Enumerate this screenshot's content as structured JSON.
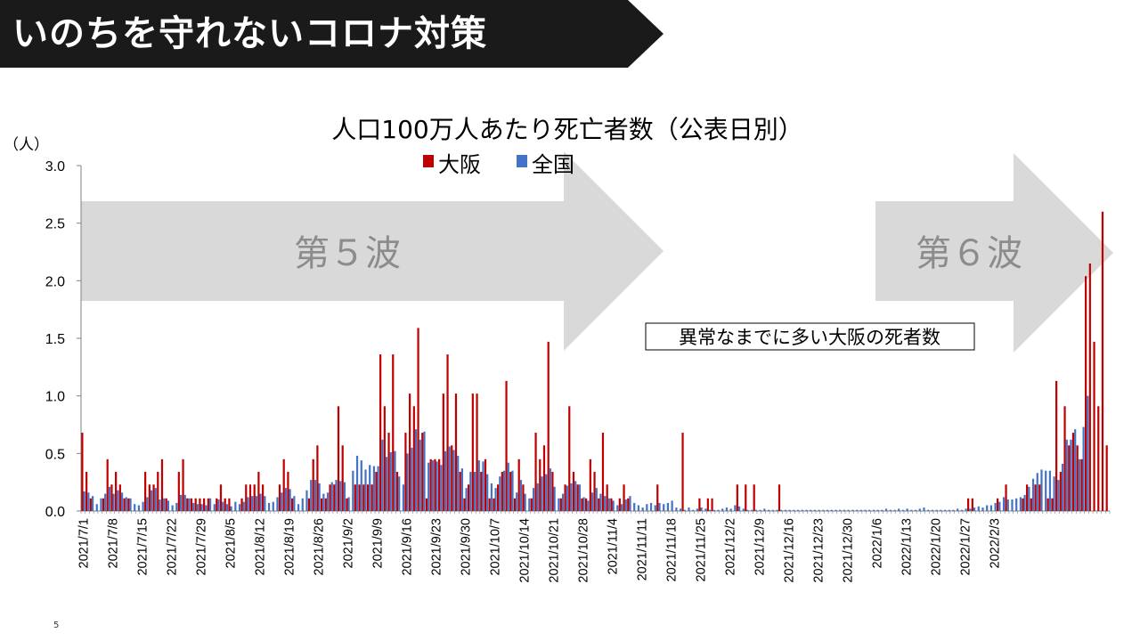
{
  "slide": {
    "title": "いのちを守れないコロナ対策",
    "page_number": "5"
  },
  "annotations": {
    "wave5_label": "第５波",
    "wave6_label": "第６波",
    "note": "異常なまでに多い大阪の死者数"
  },
  "colors": {
    "osaka": "#c00000",
    "national": "#4472c4",
    "arrow": "#d9d9d9",
    "title_bar": "#1a1a1a"
  },
  "chart_data": {
    "type": "bar",
    "title": "人口100万人あたり死亡者数（公表日別）",
    "ylabel": "（人）",
    "ylim": [
      0,
      3.0
    ],
    "yticks": [
      "0.0",
      "0.5",
      "1.0",
      "1.5",
      "2.0",
      "2.5",
      "3.0"
    ],
    "legend_position": "top-center",
    "start_date": "2021/7/1",
    "x_tick_labels": [
      "2021/7/1",
      "2021/7/8",
      "2021/7/15",
      "2021/7/22",
      "2021/7/29",
      "2021/8/5",
      "2021/8/12",
      "2021/8/19",
      "2021/8/26",
      "2021/9/2",
      "2021/9/9",
      "2021/9/16",
      "2021/9/23",
      "2021/9/30",
      "2021/10/7",
      "2021/10/14",
      "2021/10/21",
      "2021/10/28",
      "2021/11/4",
      "2021/11/11",
      "2021/11/18",
      "2021/11/25",
      "2021/12/2",
      "2021/12/9",
      "2021/12/16",
      "2021/12/23",
      "2021/12/30",
      "2022/1/6",
      "2022/1/13",
      "2022/1/20",
      "2022/1/27",
      "2022/2/3"
    ],
    "series": [
      {
        "name": "大阪",
        "values": [
          0.68,
          0.34,
          0.11,
          0,
          0,
          0.11,
          0.45,
          0.23,
          0.34,
          0.23,
          0.11,
          0.11,
          0,
          0,
          0,
          0.34,
          0.23,
          0.23,
          0.34,
          0.45,
          0.11,
          0,
          0,
          0.34,
          0.45,
          0.11,
          0.11,
          0.11,
          0.11,
          0.11,
          0.11,
          0,
          0.11,
          0.23,
          0.11,
          0.11,
          0,
          0,
          0.11,
          0.23,
          0.23,
          0.23,
          0.34,
          0.23,
          0,
          0,
          0,
          0.23,
          0.45,
          0.34,
          0.11,
          0,
          0,
          0,
          0.11,
          0.45,
          0.57,
          0.11,
          0.11,
          0.23,
          0.23,
          0.91,
          0.57,
          0.11,
          0,
          0.23,
          0.23,
          0.23,
          0.23,
          0.23,
          0.34,
          1.36,
          0.91,
          0.68,
          1.36,
          0.34,
          0,
          0.68,
          1.02,
          0.91,
          1.59,
          0.68,
          0.11,
          0.45,
          0.45,
          0.45,
          1.02,
          1.36,
          0.57,
          1.02,
          0.34,
          0.11,
          0.23,
          1.02,
          1.02,
          0.34,
          0.45,
          0.11,
          0.11,
          0.23,
          0.34,
          1.13,
          0.34,
          0.11,
          0.45,
          0.23,
          0,
          0.11,
          0.68,
          0.45,
          0.57,
          1.47,
          0.34,
          0,
          0.11,
          0.23,
          0.91,
          0.34,
          0.23,
          0.11,
          0.11,
          0.45,
          0.34,
          0.11,
          0.68,
          0.23,
          0.11,
          0,
          0.11,
          0.23,
          0.11,
          0,
          0,
          0,
          0,
          0,
          0,
          0.23,
          0,
          0,
          0,
          0,
          0,
          0.68,
          0,
          0,
          0,
          0.11,
          0,
          0.11,
          0.11,
          0,
          0,
          0,
          0,
          0,
          0.23,
          0,
          0.23,
          0,
          0.23,
          0,
          0,
          0,
          0,
          0,
          0.23,
          0,
          0,
          0,
          0,
          0,
          0,
          0,
          0,
          0,
          0,
          0,
          0,
          0,
          0,
          0,
          0,
          0,
          0,
          0,
          0,
          0,
          0,
          0,
          0,
          0,
          0,
          0,
          0,
          0,
          0,
          0,
          0,
          0,
          0,
          0,
          0,
          0,
          0,
          0,
          0,
          0,
          0,
          0,
          0,
          0.11,
          0.11,
          0,
          0,
          0,
          0,
          0,
          0.11,
          0,
          0.23,
          0,
          0,
          0,
          0.11,
          0.23,
          0.11,
          0.23,
          0.23,
          0,
          0.11,
          0.11,
          1.13,
          0.34,
          0.91,
          0.57,
          0.68,
          0.57,
          0.45,
          2.04,
          2.15,
          1.47,
          0.91,
          2.6,
          0.57
        ],
        "color": "#c00000"
      },
      {
        "name": "全国",
        "values": [
          0.17,
          0.16,
          0.13,
          0.06,
          0.11,
          0.15,
          0.21,
          0.15,
          0.18,
          0.16,
          0.12,
          0.11,
          0.06,
          0.05,
          0.08,
          0.12,
          0.18,
          0.2,
          0.1,
          0.11,
          0.09,
          0.05,
          0.07,
          0.14,
          0.14,
          0.11,
          0.07,
          0.06,
          0.06,
          0.05,
          0.11,
          0.06,
          0.1,
          0.08,
          0.06,
          0.04,
          0.08,
          0.06,
          0.08,
          0.12,
          0.13,
          0.13,
          0.15,
          0.13,
          0.07,
          0.08,
          0.12,
          0.16,
          0.2,
          0.19,
          0.13,
          0.06,
          0.11,
          0.18,
          0.27,
          0.27,
          0.24,
          0.15,
          0.16,
          0.25,
          0.27,
          0.26,
          0.25,
          0.12,
          0.35,
          0.48,
          0.44,
          0.36,
          0.4,
          0.39,
          0.39,
          0.62,
          0.47,
          0.51,
          0.52,
          0.3,
          0.23,
          0.5,
          0.55,
          0.71,
          0.62,
          0.69,
          0.42,
          0.44,
          0.43,
          0.4,
          0.52,
          0.56,
          0.53,
          0.48,
          0.37,
          0.2,
          0.34,
          0.34,
          0.44,
          0.43,
          0.32,
          0.24,
          0.2,
          0.3,
          0.35,
          0.42,
          0.35,
          0.16,
          0.27,
          0.15,
          0.11,
          0.2,
          0.24,
          0.3,
          0.32,
          0.37,
          0.21,
          0.11,
          0.15,
          0.22,
          0.24,
          0.26,
          0.23,
          0.12,
          0.09,
          0.16,
          0.2,
          0.15,
          0.13,
          0.11,
          0.09,
          0.05,
          0.06,
          0.1,
          0.13,
          0.07,
          0.05,
          0.03,
          0.06,
          0.07,
          0.05,
          0.07,
          0.06,
          0.07,
          0.09,
          0.03,
          0.02,
          0.01,
          0.03,
          0.01,
          0.02,
          0.03,
          0.02,
          0.01,
          0.01,
          0.01,
          0.02,
          0.03,
          0.02,
          0.05,
          0.04,
          0.02,
          0.01,
          0.01,
          0.01,
          0.01,
          0.02,
          0.01,
          0.01,
          0.01,
          0.01,
          0.01,
          0.01,
          0.01,
          0.01,
          0.01,
          0.01,
          0.01,
          0.01,
          0.01,
          0.01,
          0.01,
          0.01,
          0.01,
          0.01,
          0.01,
          0.01,
          0.01,
          0.01,
          0.01,
          0.01,
          0.01,
          0.01,
          0.01,
          0.01,
          0.02,
          0.01,
          0.01,
          0.02,
          0.01,
          0.02,
          0.01,
          0.01,
          0.02,
          0.03,
          0.01,
          0.01,
          0.01,
          0.01,
          0.01,
          0.01,
          0.01,
          0.02,
          0.01,
          0.02,
          0.02,
          0.03,
          0.04,
          0.03,
          0.05,
          0.05,
          0.07,
          0.08,
          0.12,
          0.1,
          0.1,
          0.11,
          0.12,
          0.14,
          0.21,
          0.28,
          0.33,
          0.36,
          0.35,
          0.35,
          0.3,
          0.27,
          0.41,
          0.62,
          0.62,
          0.71,
          0.45,
          0.73,
          1.0
        ],
        "color": "#4472c4"
      }
    ]
  }
}
